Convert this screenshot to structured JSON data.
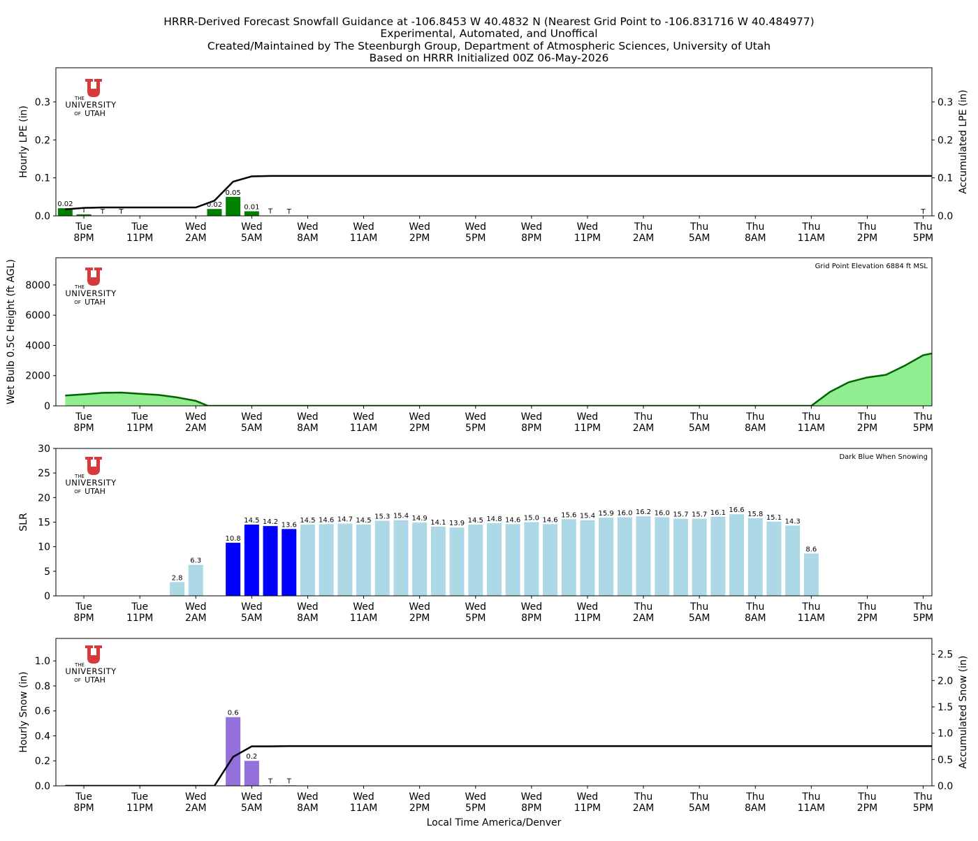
{
  "header": {
    "title_lines": [
      "HRRR-Derived Forecast Snowfall Guidance at -106.8453 W 40.4832 N (Nearest Grid Point to -106.831716 W 40.484977)",
      "Experimental, Automated, and Unoffical",
      "Created/Maintained by The Steenburgh Group, Department of Atmospheric Sciences, University of Utah",
      "Based on HRRR Initialized 00Z 06-May-2026"
    ]
  },
  "logo": {
    "lines": [
      "THE",
      "UNIVERSITY",
      "OF",
      "UTAH"
    ],
    "color": "#d8393b"
  },
  "time_axis": {
    "xlabel": "Local Time America/Denver",
    "tick_hours": [
      1,
      4,
      7,
      10,
      13,
      16,
      19,
      22,
      25,
      28,
      31,
      34,
      37,
      40,
      43,
      46
    ],
    "tick_labels": [
      [
        "Tue",
        "8PM"
      ],
      [
        "Tue",
        "11PM"
      ],
      [
        "Wed",
        "2AM"
      ],
      [
        "Wed",
        "5AM"
      ],
      [
        "Wed",
        "8AM"
      ],
      [
        "Wed",
        "11AM"
      ],
      [
        "Wed",
        "2PM"
      ],
      [
        "Wed",
        "5PM"
      ],
      [
        "Wed",
        "8PM"
      ],
      [
        "Wed",
        "11PM"
      ],
      [
        "Thu",
        "2AM"
      ],
      [
        "Thu",
        "5AM"
      ],
      [
        "Thu",
        "8AM"
      ],
      [
        "Thu",
        "11AM"
      ],
      [
        "Thu",
        "2PM"
      ],
      [
        "Thu",
        "5PM"
      ]
    ],
    "xlim": [
      0,
      47
    ]
  },
  "chart_data": [
    {
      "type": "bar",
      "ylabel": "Hourly LPE (in)",
      "y2label": "Accumulated LPE (in)",
      "ylim": [
        0,
        0.39
      ],
      "yticks": [
        "0.0",
        "0.1",
        "0.2",
        "0.3"
      ],
      "y2ticks": [
        "0.0",
        "0.1",
        "0.2",
        "0.3"
      ],
      "bar_color": "#008000",
      "hours": [
        0,
        1,
        8,
        9,
        10,
        11,
        47
      ],
      "values": [
        0.02,
        0.004,
        0.018,
        0.05,
        0.012,
        0.0005,
        0.001
      ],
      "bar_labels": [
        {
          "hour": 0,
          "text": "0.02"
        },
        {
          "hour": 1,
          "text": "T"
        },
        {
          "hour": 2,
          "text": "T"
        },
        {
          "hour": 3,
          "text": "T"
        },
        {
          "hour": 8,
          "text": "0.02"
        },
        {
          "hour": 9,
          "text": "0.05"
        },
        {
          "hour": 10,
          "text": "0.01"
        },
        {
          "hour": 11,
          "text": "T"
        },
        {
          "hour": 12,
          "text": "T"
        },
        {
          "hour": 46,
          "text": "T"
        }
      ],
      "accum_x": [
        0,
        1,
        2,
        3,
        4,
        5,
        6,
        7,
        8,
        9,
        10,
        11,
        47,
        48,
        49
      ],
      "accum_y": [
        0.017,
        0.021,
        0.022,
        0.022,
        0.022,
        0.022,
        0.022,
        0.022,
        0.04,
        0.09,
        0.104,
        0.105,
        0.105,
        0.106,
        0.106
      ]
    },
    {
      "type": "area",
      "ylabel": "Wet Bulb 0.5C Height (ft AGL)",
      "annotation": "Grid Point Elevation 6884 ft MSL",
      "ylim": [
        0,
        9800
      ],
      "yticks": [
        "0",
        "2000",
        "4000",
        "6000",
        "8000"
      ],
      "fill_color": "#90ee90",
      "line_color": "#006400",
      "x": [
        0,
        1,
        2,
        3,
        4,
        5,
        6,
        7,
        7.65,
        40,
        41,
        42,
        43,
        44,
        45,
        46,
        47,
        48
      ],
      "y": [
        680,
        760,
        860,
        880,
        800,
        720,
        560,
        330,
        0,
        0,
        920,
        1560,
        1880,
        2050,
        2650,
        3350,
        3600,
        3780
      ]
    },
    {
      "type": "bar",
      "ylabel": "SLR",
      "annotation": "Dark Blue When Snowing",
      "ylim": [
        0,
        30
      ],
      "yticks": [
        "0",
        "5",
        "10",
        "15",
        "20",
        "25",
        "30"
      ],
      "snowing_color": "#0000ff",
      "dry_color": "#add8e6",
      "hours": [
        6,
        7,
        9,
        10,
        11,
        12,
        13,
        14,
        15,
        16,
        17,
        18,
        19,
        20,
        21,
        22,
        23,
        24,
        25,
        26,
        27,
        28,
        29,
        30,
        31,
        32,
        33,
        34,
        35,
        36,
        37,
        38,
        39,
        40,
        41,
        42
      ],
      "values": [
        2.8,
        6.3,
        10.8,
        14.5,
        14.2,
        13.6,
        14.5,
        14.6,
        14.7,
        14.5,
        15.3,
        15.4,
        14.9,
        14.1,
        13.9,
        14.5,
        14.8,
        14.6,
        15.0,
        14.6,
        15.6,
        15.4,
        15.9,
        16.0,
        16.2,
        16.0,
        15.7,
        15.7,
        16.1,
        16.6,
        15.8,
        15.1,
        14.3,
        8.6,
        0,
        0
      ],
      "labels": [
        "2.8",
        "6.3",
        "10.8",
        "14.5",
        "14.2",
        "13.6",
        "14.5",
        "14.6",
        "14.7",
        "14.5",
        "15.3",
        "15.4",
        "14.9",
        "14.1",
        "13.9",
        "14.5",
        "14.8",
        "14.6",
        "15.0",
        "14.6",
        "15.6",
        "15.4",
        "15.9",
        "16.0",
        "16.2",
        "16.0",
        "15.7",
        "15.7",
        "16.1",
        "16.6",
        "15.8",
        "15.1",
        "14.3",
        "8.6",
        "",
        ""
      ],
      "snowing": [
        false,
        false,
        true,
        true,
        true,
        true,
        false,
        false,
        false,
        false,
        false,
        false,
        false,
        false,
        false,
        false,
        false,
        false,
        false,
        false,
        false,
        false,
        false,
        false,
        false,
        false,
        false,
        false,
        false,
        false,
        false,
        false,
        false,
        false,
        false,
        false
      ]
    },
    {
      "type": "bar",
      "ylabel": "Hourly Snow (in)",
      "y2label": "Accumulated Snow (in)",
      "ylim": [
        0,
        1.18
      ],
      "yticks": [
        "0.0",
        "0.2",
        "0.4",
        "0.6",
        "0.8",
        "1.0"
      ],
      "y2lim": [
        0,
        2.8
      ],
      "y2ticks": [
        "0.0",
        "0.5",
        "1.0",
        "1.5",
        "2.0",
        "2.5"
      ],
      "bar_color": "#9370db",
      "hours": [
        9,
        10,
        11,
        12
      ],
      "values": [
        0.55,
        0.2,
        0.004,
        0.004
      ],
      "bar_labels": [
        {
          "hour": 9,
          "text": "0.6"
        },
        {
          "hour": 10,
          "text": "0.2"
        },
        {
          "hour": 11,
          "text": "T"
        },
        {
          "hour": 12,
          "text": "T"
        }
      ],
      "accum_x": [
        0,
        1,
        2,
        3,
        4,
        5,
        6,
        7,
        8,
        9,
        10,
        11,
        12,
        13,
        47,
        48
      ],
      "accum_y": [
        0,
        0,
        0,
        0,
        0,
        0,
        0,
        0,
        0,
        0.55,
        0.75,
        0.75,
        0.755,
        0.755,
        0.755,
        0.755
      ]
    }
  ]
}
